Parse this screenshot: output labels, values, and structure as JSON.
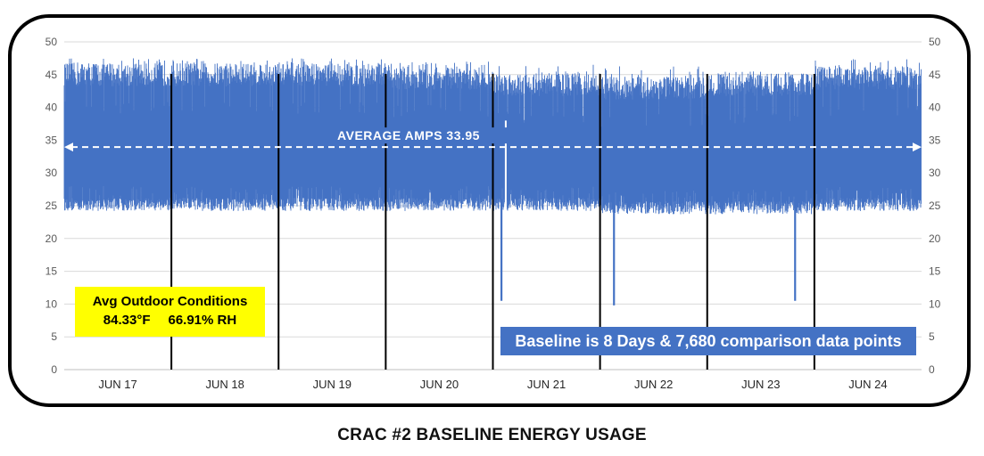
{
  "caption": "CRAC #2 BASELINE ENERGY USAGE",
  "colors": {
    "series": "#4472c4",
    "grid": "#d9d9d9",
    "frame": "#000000",
    "avg_line": "#ffffff",
    "conditions_bg": "#ffff00",
    "baseline_bg": "#4472c4"
  },
  "conditions": {
    "title": "Avg Outdoor Conditions",
    "temperature": "84.33°F",
    "humidity": "66.91% RH"
  },
  "baseline_note": "Baseline is 8 Days & 7,680 comparison data points",
  "chart_data": {
    "type": "area",
    "title": "",
    "xlabel": "",
    "ylabel": "",
    "ylim": [
      0,
      50
    ],
    "y_ticks": [
      0,
      5,
      10,
      15,
      20,
      25,
      30,
      35,
      40,
      45,
      50
    ],
    "secondary_y_ticks": [
      0,
      5,
      10,
      15,
      20,
      25,
      30,
      35,
      40,
      45,
      50
    ],
    "grid": "horizontal",
    "x_categories": [
      "JUN 17",
      "JUN 18",
      "JUN 19",
      "JUN 20",
      "JUN 21",
      "JUN 22",
      "JUN 23",
      "JUN 24"
    ],
    "day_dividers": true,
    "series": [
      {
        "description_of_band": "oscillating amps reading",
        "days": [
          {
            "day": "JUN 17",
            "low": 25,
            "high": 46,
            "peak": 47
          },
          {
            "day": "JUN 18",
            "low": 25,
            "high": 46,
            "peak": 47
          },
          {
            "day": "JUN 19",
            "low": 25,
            "high": 46,
            "peak": 47
          },
          {
            "day": "JUN 20",
            "low": 25,
            "high": 45.5,
            "peak": 46.5
          },
          {
            "day": "JUN 21",
            "low": 25,
            "high": 44.5,
            "peak": 46
          },
          {
            "day": "JUN 22",
            "low": 24.5,
            "high": 44,
            "peak": 46
          },
          {
            "day": "JUN 23",
            "low": 24.5,
            "high": 44.5,
            "peak": 45
          },
          {
            "day": "JUN 24",
            "low": 25,
            "high": 45.5,
            "peak": 47
          }
        ],
        "dips": [
          {
            "day_position": 4.08,
            "value": 10.5
          },
          {
            "day_position": 5.13,
            "value": 9.8
          },
          {
            "day_position": 6.82,
            "value": 10.5
          }
        ],
        "spikes": [
          {
            "day_position": 4.12,
            "value": 38
          }
        ]
      }
    ],
    "annotations": [
      {
        "type": "average_line",
        "label": "AVERAGE  AMPS  33.95",
        "value": 33.95
      }
    ]
  }
}
